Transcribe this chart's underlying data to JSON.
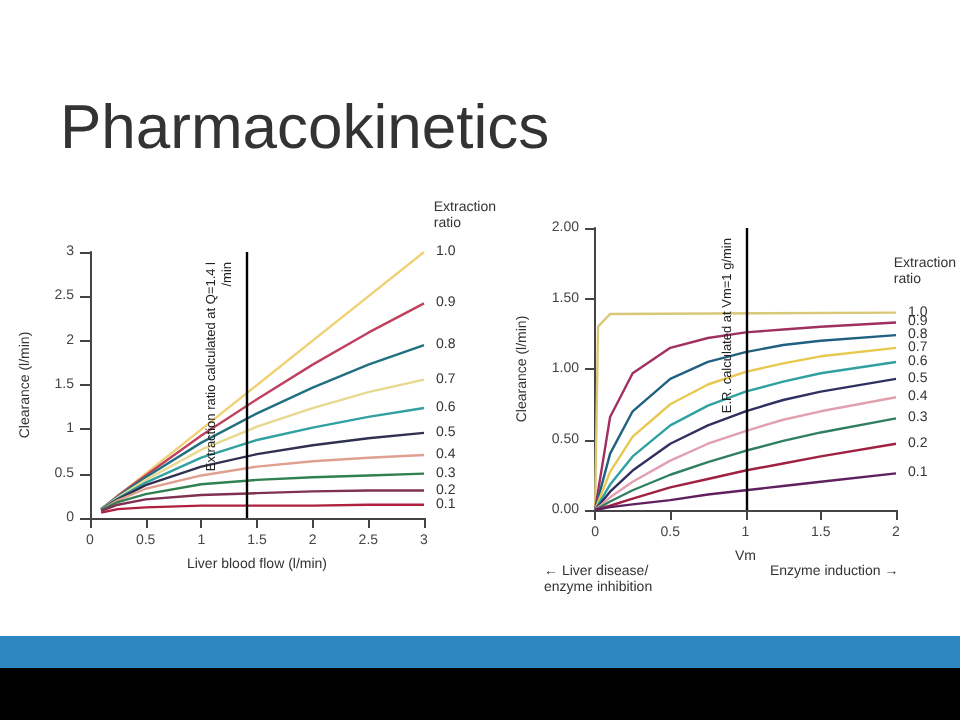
{
  "chart_data": [
    {
      "type": "line",
      "title": "Pharmacokinetics",
      "xlabel": "Liver blood flow (l/min)",
      "ylabel": "Clearance (l/min)",
      "legend_title": "Extraction ratio",
      "x": [
        0.1,
        0.25,
        0.5,
        1,
        1.5,
        2,
        2.5,
        3
      ],
      "series": [
        {
          "name": "1.0",
          "color": "#f0d070",
          "values": [
            0.1,
            0.25,
            0.5,
            1,
            1.5,
            2,
            2.5,
            3
          ]
        },
        {
          "name": "0.9",
          "color": "#c04060",
          "values": [
            0.1,
            0.25,
            0.48,
            0.93,
            1.34,
            1.73,
            2.09,
            2.42
          ]
        },
        {
          "name": "0.8",
          "color": "#207080",
          "values": [
            0.1,
            0.24,
            0.46,
            0.85,
            1.18,
            1.47,
            1.73,
            1.95
          ]
        },
        {
          "name": "0.7",
          "color": "#e8d890",
          "values": [
            0.1,
            0.23,
            0.43,
            0.77,
            1.03,
            1.24,
            1.42,
            1.56
          ]
        },
        {
          "name": "0.6",
          "color": "#30a0a0",
          "values": [
            0.1,
            0.22,
            0.4,
            0.68,
            0.88,
            1.02,
            1.14,
            1.24
          ]
        },
        {
          "name": "0.5",
          "color": "#303050",
          "values": [
            0.09,
            0.21,
            0.37,
            0.58,
            0.72,
            0.82,
            0.9,
            0.96
          ]
        },
        {
          "name": "0.4",
          "color": "#e0a090",
          "values": [
            0.09,
            0.2,
            0.33,
            0.48,
            0.58,
            0.64,
            0.68,
            0.71
          ]
        },
        {
          "name": "0.3",
          "color": "#308050",
          "values": [
            0.09,
            0.18,
            0.27,
            0.38,
            0.43,
            0.46,
            0.48,
            0.5
          ]
        },
        {
          "name": "0.2",
          "color": "#803050",
          "values": [
            0.08,
            0.15,
            0.21,
            0.26,
            0.28,
            0.3,
            0.31,
            0.31
          ]
        },
        {
          "name": "0.1",
          "color": "#b02040",
          "values": [
            0.06,
            0.1,
            0.12,
            0.14,
            0.14,
            0.14,
            0.15,
            0.15
          ]
        }
      ],
      "xlim": [
        0,
        3
      ],
      "xticks": [
        0,
        0.5,
        1,
        1.5,
        2,
        2.5,
        3
      ],
      "ylim": [
        0,
        3
      ],
      "yticks": [
        0,
        0.5,
        1,
        1.5,
        2,
        2.5,
        3
      ],
      "ref_lines": [
        {
          "axis": "x",
          "value": 1.4,
          "label": "Extraction ratio calculated at Q=1.4 l/min",
          "color": "#000000"
        }
      ],
      "grid": false,
      "marker": "none",
      "line_style": "solid"
    },
    {
      "type": "line",
      "xlabel": "Vm",
      "ylabel": "Clearance (l/min)",
      "legend_title": "Extraction ratio",
      "x": [
        0,
        0.1,
        0.25,
        0.5,
        0.75,
        1,
        1.25,
        1.5,
        2
      ],
      "series": [
        {
          "name": "1.0",
          "color": "#d8c878",
          "x": [
            0,
            0.02,
            0.1,
            2
          ],
          "values": [
            0,
            1.3,
            1.39,
            1.4
          ]
        },
        {
          "name": "0.9",
          "color": "#a03060",
          "values": [
            0,
            0.66,
            0.97,
            1.15,
            1.22,
            1.26,
            1.28,
            1.3,
            1.33
          ]
        },
        {
          "name": "0.8",
          "color": "#206080",
          "values": [
            0,
            0.4,
            0.7,
            0.93,
            1.05,
            1.12,
            1.17,
            1.2,
            1.24
          ]
        },
        {
          "name": "0.7",
          "color": "#e8c850",
          "values": [
            0,
            0.27,
            0.52,
            0.75,
            0.89,
            0.98,
            1.04,
            1.09,
            1.15
          ]
        },
        {
          "name": "0.6",
          "color": "#30a0a0",
          "values": [
            0,
            0.18,
            0.38,
            0.6,
            0.74,
            0.84,
            0.91,
            0.97,
            1.05
          ]
        },
        {
          "name": "0.5",
          "color": "#303060",
          "values": [
            0,
            0.13,
            0.28,
            0.47,
            0.6,
            0.7,
            0.78,
            0.84,
            0.93
          ]
        },
        {
          "name": "0.4",
          "color": "#e0a0b0",
          "values": [
            0,
            0.09,
            0.2,
            0.35,
            0.47,
            0.56,
            0.64,
            0.7,
            0.8
          ]
        },
        {
          "name": "0.3",
          "color": "#308060",
          "values": [
            0,
            0.06,
            0.14,
            0.25,
            0.34,
            0.42,
            0.49,
            0.55,
            0.65
          ]
        },
        {
          "name": "0.2",
          "color": "#a02040",
          "values": [
            0,
            0.03,
            0.08,
            0.16,
            0.22,
            0.28,
            0.33,
            0.38,
            0.47
          ]
        },
        {
          "name": "0.1",
          "color": "#602060",
          "values": [
            0,
            0.02,
            0.04,
            0.07,
            0.11,
            0.14,
            0.17,
            0.2,
            0.26
          ]
        }
      ],
      "xlim": [
        0,
        2
      ],
      "xticks": [
        0,
        0.5,
        1,
        1.5,
        2
      ],
      "ylim": [
        0,
        2
      ],
      "yticks": [
        {
          "value": 0,
          "label": "0.00"
        },
        {
          "value": 0.5,
          "label": "0.50"
        },
        {
          "value": 1,
          "label": "1.00"
        },
        {
          "value": 1.5,
          "label": "1.50"
        },
        {
          "value": 2,
          "label": "2.00"
        }
      ],
      "ref_lines": [
        {
          "axis": "x",
          "value": 1,
          "label": "E.R. calculated at Vm=1 g/min",
          "color": "#000000"
        }
      ],
      "annotations": [
        "← Liver disease/ enzyme inhibition",
        "Enzyme induction →"
      ],
      "grid": false,
      "marker": "none",
      "line_style": "solid"
    }
  ]
}
